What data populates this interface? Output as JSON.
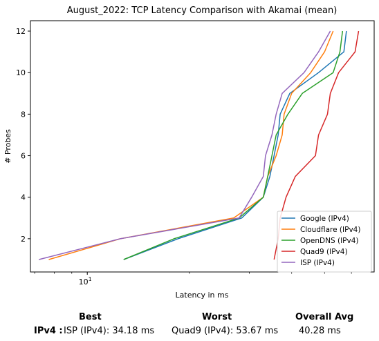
{
  "chart_data": {
    "type": "line",
    "title": "August_2022: TCP Latency Comparison with Akamai (mean)",
    "xlabel": "Latency in ms",
    "ylabel": "# Probes",
    "xscale": "log",
    "xlim": [
      6.8,
      70
    ],
    "ylim": [
      0.4,
      12.5
    ],
    "yticks": [
      2,
      4,
      6,
      8,
      10,
      12
    ],
    "xticks_major": [
      10
    ],
    "xticks_major_labels": [
      "10^1"
    ],
    "xticks_minor": [
      7,
      8,
      9,
      20,
      30,
      40,
      50,
      60
    ],
    "grid": false,
    "legend_position": "lower right",
    "series": [
      {
        "name": "Google (IPv4)",
        "color": "#1f77b4",
        "points": [
          [
            12.8,
            1
          ],
          [
            18.5,
            2
          ],
          [
            28.5,
            3
          ],
          [
            33.0,
            4
          ],
          [
            34.5,
            5
          ],
          [
            35.5,
            6
          ],
          [
            36.5,
            7
          ],
          [
            37.0,
            8
          ],
          [
            39.5,
            9
          ],
          [
            48.0,
            10
          ],
          [
            57.0,
            11
          ],
          [
            58.0,
            12
          ]
        ]
      },
      {
        "name": "Cloudflare (IPv4)",
        "color": "#ff7f0e",
        "points": [
          [
            7.7,
            1
          ],
          [
            12.5,
            2
          ],
          [
            27.0,
            3
          ],
          [
            33.0,
            4
          ],
          [
            34.0,
            5
          ],
          [
            36.0,
            6
          ],
          [
            37.5,
            7
          ],
          [
            38.0,
            8
          ],
          [
            40.0,
            9
          ],
          [
            45.5,
            10
          ],
          [
            50.0,
            11
          ],
          [
            53.0,
            12
          ]
        ]
      },
      {
        "name": "OpenDNS (IPv4)",
        "color": "#2ca02c",
        "points": [
          [
            12.8,
            1
          ],
          [
            18.0,
            2
          ],
          [
            28.0,
            3
          ],
          [
            33.0,
            4
          ],
          [
            34.0,
            5
          ],
          [
            35.0,
            6
          ],
          [
            36.0,
            7
          ],
          [
            39.0,
            8
          ],
          [
            43.0,
            9
          ],
          [
            53.0,
            10
          ],
          [
            55.5,
            11
          ],
          [
            56.5,
            12
          ]
        ]
      },
      {
        "name": "Quad9 (IPv4)",
        "color": "#d62728",
        "points": [
          [
            35.5,
            1
          ],
          [
            36.5,
            2
          ],
          [
            37.0,
            3
          ],
          [
            38.5,
            4
          ],
          [
            41.0,
            5
          ],
          [
            47.0,
            6
          ],
          [
            48.0,
            7
          ],
          [
            51.0,
            8
          ],
          [
            52.0,
            9
          ],
          [
            55.0,
            10
          ],
          [
            61.5,
            11
          ],
          [
            63.0,
            12
          ]
        ]
      },
      {
        "name": "ISP (IPv4)",
        "color": "#9467bd",
        "points": [
          [
            7.2,
            1
          ],
          [
            12.5,
            2
          ],
          [
            28.0,
            3
          ],
          [
            30.5,
            4
          ],
          [
            33.0,
            5
          ],
          [
            33.5,
            6
          ],
          [
            35.0,
            7
          ],
          [
            36.0,
            8
          ],
          [
            37.5,
            9
          ],
          [
            43.5,
            10
          ],
          [
            48.0,
            11
          ],
          [
            52.0,
            12
          ]
        ]
      }
    ]
  },
  "summary": {
    "best_header": "Best",
    "worst_header": "Worst",
    "avg_header": "Overall Avg",
    "row_label": "IPv4 :",
    "best_value": "ISP (IPv4): 34.18 ms",
    "worst_value": "Quad9 (IPv4): 53.67 ms",
    "avg_value": "40.28 ms"
  }
}
